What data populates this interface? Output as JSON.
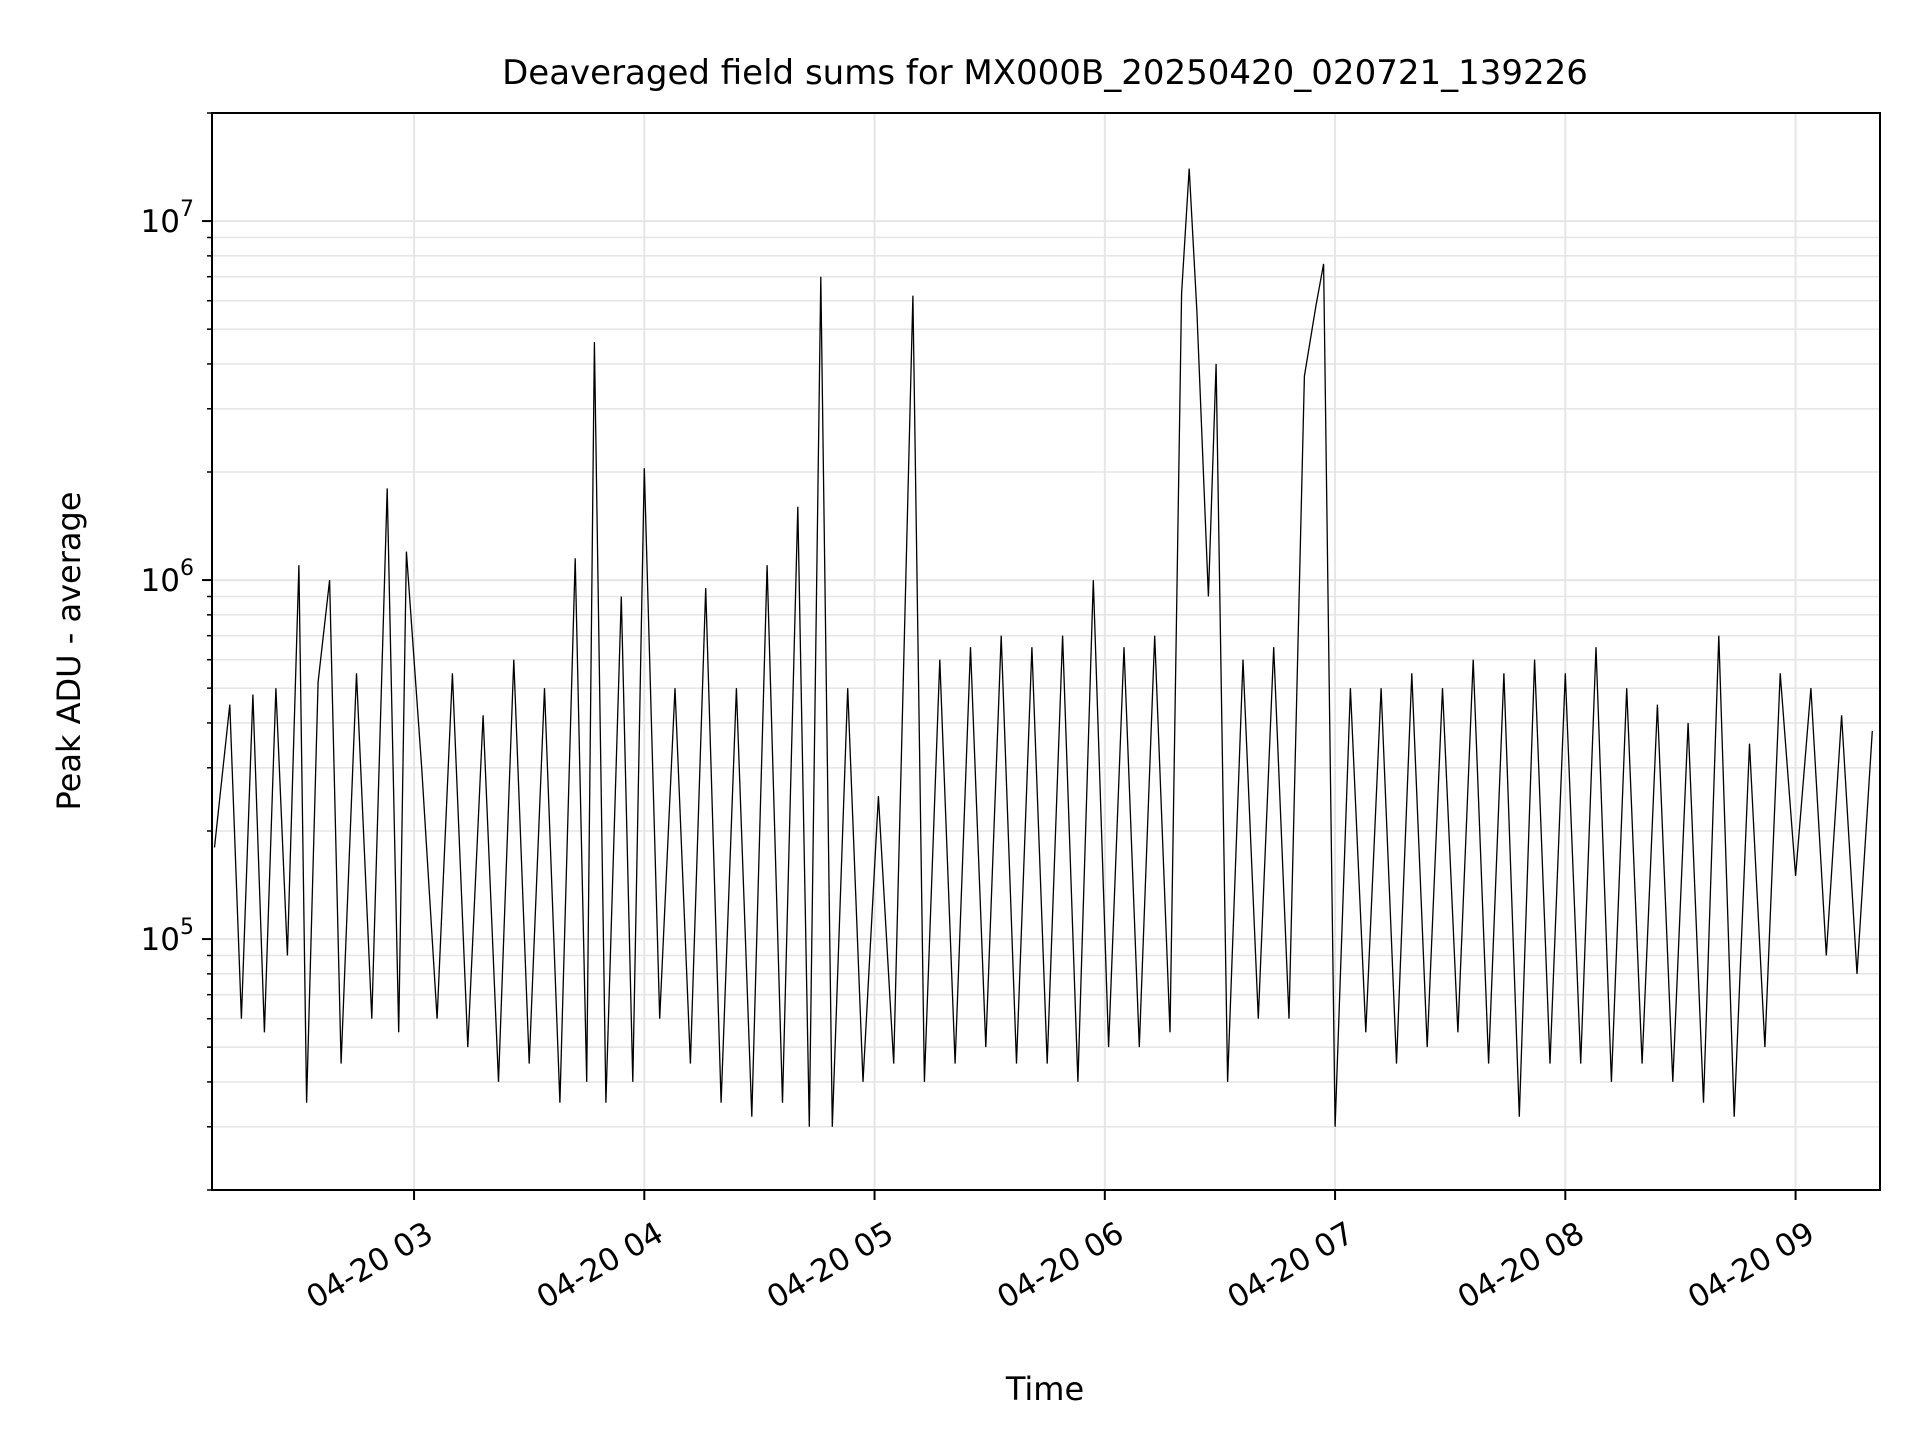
{
  "chart_data": {
    "type": "line",
    "title": "Deaveraged field sums for MX000B_20250420_020721_139226",
    "xlabel": "Time",
    "ylabel": "Peak ADU - average",
    "yscale": "log",
    "xlim": [
      "2025-04-20 02:07:21",
      "2025-04-20 09:22:00"
    ],
    "ylim": [
      20000,
      20000000
    ],
    "x_ticks": [
      {
        "t": "2025-04-20 03:00",
        "label": "04-20 03"
      },
      {
        "t": "2025-04-20 04:00",
        "label": "04-20 04"
      },
      {
        "t": "2025-04-20 05:00",
        "label": "04-20 05"
      },
      {
        "t": "2025-04-20 06:00",
        "label": "04-20 06"
      },
      {
        "t": "2025-04-20 07:00",
        "label": "04-20 07"
      },
      {
        "t": "2025-04-20 08:00",
        "label": "04-20 08"
      },
      {
        "t": "2025-04-20 09:00",
        "label": "04-20 09"
      }
    ],
    "y_ticks": [
      {
        "value": 100000,
        "base": "10",
        "exp": "5"
      },
      {
        "value": 1000000,
        "base": "10",
        "exp": "6"
      },
      {
        "value": 10000000,
        "base": "10",
        "exp": "7"
      }
    ],
    "grid": true,
    "line_color": "#000000",
    "grid_color": "#e6e6e6",
    "series": [
      {
        "note_points": "approximate envelope read from the figure",
        "points": [
          [
            "2025-04-20 02:08",
            180000
          ],
          [
            "2025-04-20 02:12",
            450000
          ],
          [
            "2025-04-20 02:15",
            60000
          ],
          [
            "2025-04-20 02:18",
            480000
          ],
          [
            "2025-04-20 02:21",
            55000
          ],
          [
            "2025-04-20 02:24",
            500000
          ],
          [
            "2025-04-20 02:27",
            90000
          ],
          [
            "2025-04-20 02:30",
            1100000
          ],
          [
            "2025-04-20 02:32",
            35000
          ],
          [
            "2025-04-20 02:35",
            520000
          ],
          [
            "2025-04-20 02:38",
            1000000
          ],
          [
            "2025-04-20 02:41",
            45000
          ],
          [
            "2025-04-20 02:45",
            550000
          ],
          [
            "2025-04-20 02:49",
            60000
          ],
          [
            "2025-04-20 02:53",
            1800000
          ],
          [
            "2025-04-20 02:56",
            55000
          ],
          [
            "2025-04-20 02:58",
            1200000
          ],
          [
            "2025-04-20 03:02",
            300000
          ],
          [
            "2025-04-20 03:06",
            60000
          ],
          [
            "2025-04-20 03:10",
            550000
          ],
          [
            "2025-04-20 03:14",
            50000
          ],
          [
            "2025-04-20 03:18",
            420000
          ],
          [
            "2025-04-20 03:22",
            40000
          ],
          [
            "2025-04-20 03:26",
            600000
          ],
          [
            "2025-04-20 03:30",
            45000
          ],
          [
            "2025-04-20 03:34",
            500000
          ],
          [
            "2025-04-20 03:38",
            35000
          ],
          [
            "2025-04-20 03:42",
            1150000
          ],
          [
            "2025-04-20 03:45",
            40000
          ],
          [
            "2025-04-20 03:47",
            4600000
          ],
          [
            "2025-04-20 03:50",
            35000
          ],
          [
            "2025-04-20 03:54",
            900000
          ],
          [
            "2025-04-20 03:57",
            40000
          ],
          [
            "2025-04-20 04:00",
            2050000
          ],
          [
            "2025-04-20 04:04",
            60000
          ],
          [
            "2025-04-20 04:08",
            500000
          ],
          [
            "2025-04-20 04:12",
            45000
          ],
          [
            "2025-04-20 04:16",
            950000
          ],
          [
            "2025-04-20 04:20",
            35000
          ],
          [
            "2025-04-20 04:24",
            500000
          ],
          [
            "2025-04-20 04:28",
            32000
          ],
          [
            "2025-04-20 04:32",
            1100000
          ],
          [
            "2025-04-20 04:36",
            35000
          ],
          [
            "2025-04-20 04:40",
            1600000
          ],
          [
            "2025-04-20 04:43",
            30000
          ],
          [
            "2025-04-20 04:46",
            7000000
          ],
          [
            "2025-04-20 04:49",
            30000
          ],
          [
            "2025-04-20 04:53",
            500000
          ],
          [
            "2025-04-20 04:57",
            40000
          ],
          [
            "2025-04-20 05:01",
            250000
          ],
          [
            "2025-04-20 05:05",
            45000
          ],
          [
            "2025-04-20 05:10",
            6200000
          ],
          [
            "2025-04-20 05:13",
            40000
          ],
          [
            "2025-04-20 05:17",
            600000
          ],
          [
            "2025-04-20 05:21",
            45000
          ],
          [
            "2025-04-20 05:25",
            650000
          ],
          [
            "2025-04-20 05:29",
            50000
          ],
          [
            "2025-04-20 05:33",
            700000
          ],
          [
            "2025-04-20 05:37",
            45000
          ],
          [
            "2025-04-20 05:41",
            650000
          ],
          [
            "2025-04-20 05:45",
            45000
          ],
          [
            "2025-04-20 05:49",
            700000
          ],
          [
            "2025-04-20 05:53",
            40000
          ],
          [
            "2025-04-20 05:57",
            1000000
          ],
          [
            "2025-04-20 06:01",
            50000
          ],
          [
            "2025-04-20 06:05",
            650000
          ],
          [
            "2025-04-20 06:09",
            50000
          ],
          [
            "2025-04-20 06:13",
            700000
          ],
          [
            "2025-04-20 06:17",
            55000
          ],
          [
            "2025-04-20 06:20",
            6300000
          ],
          [
            "2025-04-20 06:22",
            14000000
          ],
          [
            "2025-04-20 06:24",
            5600000
          ],
          [
            "2025-04-20 06:27",
            900000
          ],
          [
            "2025-04-20 06:29",
            4000000
          ],
          [
            "2025-04-20 06:32",
            40000
          ],
          [
            "2025-04-20 06:36",
            600000
          ],
          [
            "2025-04-20 06:40",
            60000
          ],
          [
            "2025-04-20 06:44",
            650000
          ],
          [
            "2025-04-20 06:48",
            60000
          ],
          [
            "2025-04-20 06:52",
            3700000
          ],
          [
            "2025-04-20 06:55",
            5800000
          ],
          [
            "2025-04-20 06:57",
            7600000
          ],
          [
            "2025-04-20 07:00",
            30000
          ],
          [
            "2025-04-20 07:04",
            500000
          ],
          [
            "2025-04-20 07:08",
            55000
          ],
          [
            "2025-04-20 07:12",
            500000
          ],
          [
            "2025-04-20 07:16",
            45000
          ],
          [
            "2025-04-20 07:20",
            550000
          ],
          [
            "2025-04-20 07:24",
            50000
          ],
          [
            "2025-04-20 07:28",
            500000
          ],
          [
            "2025-04-20 07:32",
            55000
          ],
          [
            "2025-04-20 07:36",
            600000
          ],
          [
            "2025-04-20 07:40",
            45000
          ],
          [
            "2025-04-20 07:44",
            550000
          ],
          [
            "2025-04-20 07:48",
            32000
          ],
          [
            "2025-04-20 07:52",
            600000
          ],
          [
            "2025-04-20 07:56",
            45000
          ],
          [
            "2025-04-20 08:00",
            550000
          ],
          [
            "2025-04-20 08:04",
            45000
          ],
          [
            "2025-04-20 08:08",
            650000
          ],
          [
            "2025-04-20 08:12",
            40000
          ],
          [
            "2025-04-20 08:16",
            500000
          ],
          [
            "2025-04-20 08:20",
            45000
          ],
          [
            "2025-04-20 08:24",
            450000
          ],
          [
            "2025-04-20 08:28",
            40000
          ],
          [
            "2025-04-20 08:32",
            400000
          ],
          [
            "2025-04-20 08:36",
            35000
          ],
          [
            "2025-04-20 08:40",
            700000
          ],
          [
            "2025-04-20 08:44",
            32000
          ],
          [
            "2025-04-20 08:48",
            350000
          ],
          [
            "2025-04-20 08:52",
            50000
          ],
          [
            "2025-04-20 08:56",
            550000
          ],
          [
            "2025-04-20 09:00",
            150000
          ],
          [
            "2025-04-20 09:04",
            500000
          ],
          [
            "2025-04-20 09:08",
            90000
          ],
          [
            "2025-04-20 09:12",
            420000
          ],
          [
            "2025-04-20 09:16",
            80000
          ],
          [
            "2025-04-20 09:20",
            380000
          ]
        ]
      }
    ]
  }
}
